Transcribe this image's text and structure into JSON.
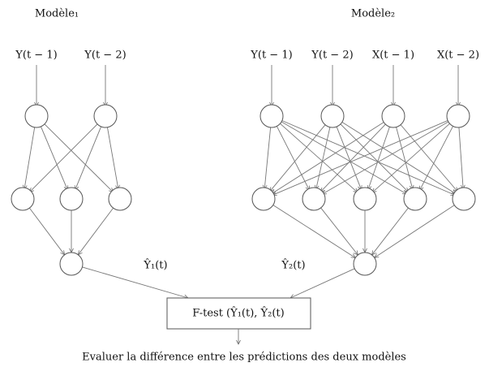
{
  "models": [
    {
      "title": "Modèle₁",
      "inputs": [
        "Y(t − 1)",
        "Y(t − 2)"
      ],
      "output": "Ŷ₁(t)"
    },
    {
      "title": "Modèle₂",
      "inputs": [
        "Y(t − 1)",
        "Y(t − 2)",
        "X(t − 1)",
        "X(t − 2)"
      ],
      "output": "Ŷ₂(t)"
    }
  ],
  "test": {
    "label": "F-test (Ŷ₁(t), Ŷ₂(t)"
  },
  "conclusion": "Evaluer la différence entre les prédictions des deux modèles"
}
